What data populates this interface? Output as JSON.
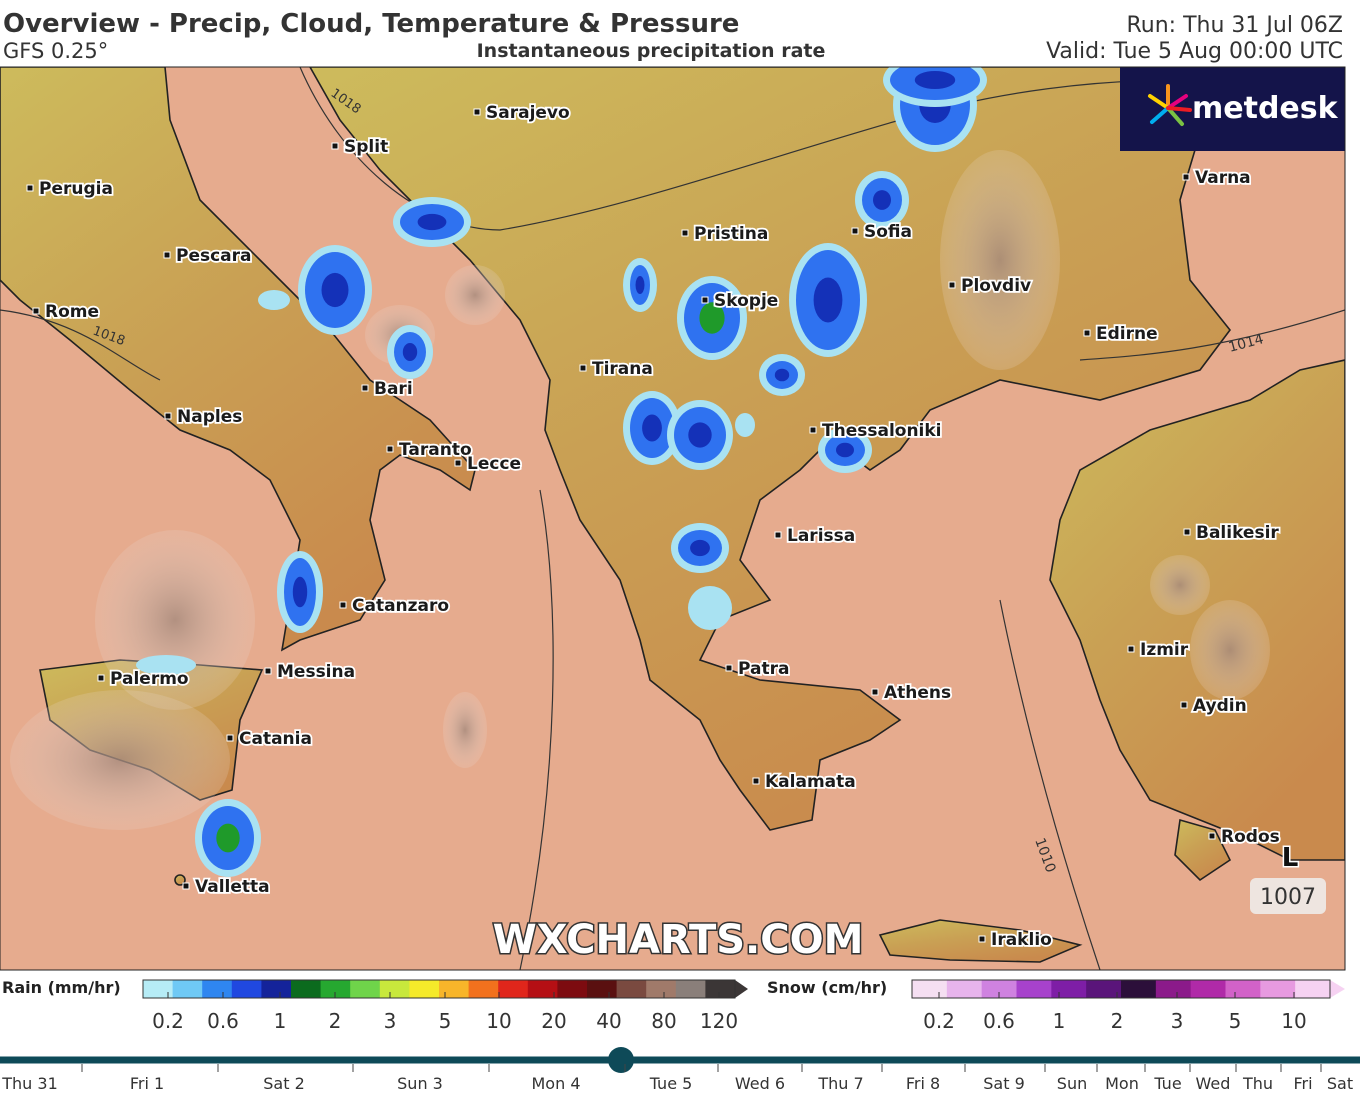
{
  "header": {
    "title": "Overview - Precip, Cloud, Temperature & Pressure",
    "model": "GFS 0.25°",
    "subtitle": "Instantaneous precipitation rate",
    "run": "Run: Thu 31 Jul 06Z",
    "valid": "Valid: Tue 5 Aug 00:00 UTC"
  },
  "map": {
    "cities": [
      "Sarajevo",
      "Split",
      "Perugia",
      "Pescara",
      "Rome",
      "Bari",
      "Naples",
      "Taranto",
      "Lecce",
      "Catanzaro",
      "Messina",
      "Palermo",
      "Catania",
      "Valletta",
      "Pristina",
      "Sofia",
      "Skopje",
      "Plovdiv",
      "Varna",
      "Edirne",
      "Tirana",
      "Thessaloniki",
      "Larissa",
      "Balikesir",
      "Izmir",
      "Patra",
      "Athens",
      "Aydin",
      "Kalamata",
      "Rodos",
      "Iraklio"
    ],
    "isobars": [
      "1018",
      "1018",
      "1014",
      "1010"
    ],
    "low": {
      "symbol": "L",
      "pressure": "1007"
    },
    "watermark": "WXCHARTS.COM",
    "logo": "metdesk"
  },
  "legend": {
    "rain": {
      "label": "Rain (mm/hr)",
      "ticks": [
        "0.2",
        "0.6",
        "1",
        "2",
        "3",
        "5",
        "10",
        "20",
        "40",
        "80",
        "120"
      ]
    },
    "snow": {
      "label": "Snow (cm/hr)",
      "ticks": [
        "0.2",
        "0.6",
        "1",
        "2",
        "3",
        "5",
        "10"
      ]
    }
  },
  "timeline": {
    "days": [
      "Thu 31",
      "Fri 1",
      "Sat 2",
      "Sun 3",
      "Mon 4",
      "Tue 5",
      "Wed 6",
      "Thu 7",
      "Fri 8",
      "Sat 9",
      "Sun",
      "Mon",
      "Tue",
      "Wed",
      "Thu",
      "Fri",
      "Sat"
    ]
  }
}
